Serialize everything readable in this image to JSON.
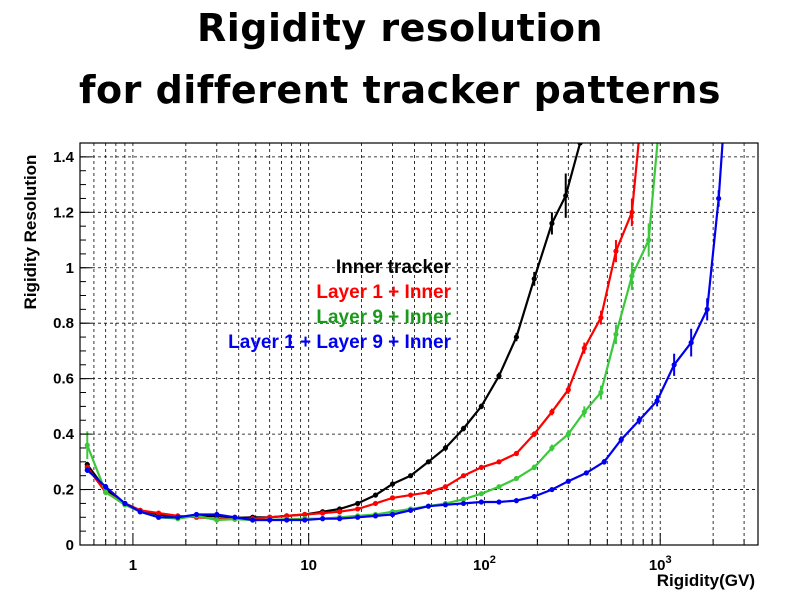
{
  "title_line1": "Rigidity resolution",
  "title_line2": "for different tracker patterns",
  "chart_data": {
    "type": "line",
    "title": "Rigidity resolution for different tracker patterns",
    "xlabel": "Rigidity(GV)",
    "ylabel": "Rigidity  Resolution",
    "xscale": "log",
    "xlim": [
      0.5,
      3600
    ],
    "ylim": [
      0,
      1.45
    ],
    "grid": true,
    "legend_position": "center",
    "yticks": [
      {
        "value": 0,
        "label": "0"
      },
      {
        "value": 0.2,
        "label": "0.2"
      },
      {
        "value": 0.4,
        "label": "0.4"
      },
      {
        "value": 0.6,
        "label": "0.6"
      },
      {
        "value": 0.8,
        "label": "0.8"
      },
      {
        "value": 1.0,
        "label": "1"
      },
      {
        "value": 1.2,
        "label": "1.2"
      },
      {
        "value": 1.4,
        "label": "1.4"
      }
    ],
    "xticks": [
      {
        "value": 1,
        "base": "1",
        "exp": ""
      },
      {
        "value": 10,
        "base": "10",
        "exp": ""
      },
      {
        "value": 100,
        "base": "10",
        "exp": "2"
      },
      {
        "value": 1000,
        "base": "10",
        "exp": "3"
      }
    ],
    "series": [
      {
        "name": "Inner tracker",
        "color": "#000000",
        "x": [
          0.55,
          0.7,
          0.9,
          1.1,
          1.4,
          1.8,
          2.3,
          3.0,
          3.8,
          4.8,
          6.0,
          7.5,
          9.5,
          12,
          15,
          19,
          24,
          30,
          38,
          48,
          60,
          76,
          96,
          121,
          152,
          192,
          242,
          290,
          350,
          420
        ],
        "y": [
          0.29,
          0.2,
          0.15,
          0.125,
          0.11,
          0.1,
          0.105,
          0.105,
          0.098,
          0.1,
          0.1,
          0.105,
          0.11,
          0.12,
          0.13,
          0.15,
          0.18,
          0.22,
          0.25,
          0.3,
          0.35,
          0.42,
          0.5,
          0.61,
          0.75,
          0.96,
          1.16,
          1.26,
          1.45,
          1.6
        ],
        "err": [
          0.01,
          0.01,
          0.008,
          0.006,
          0.005,
          0.005,
          0.005,
          0.005,
          0.005,
          0.005,
          0.005,
          0.005,
          0.005,
          0.005,
          0.005,
          0.005,
          0.006,
          0.006,
          0.007,
          0.008,
          0.01,
          0.01,
          0.01,
          0.012,
          0.015,
          0.025,
          0.04,
          0.08,
          0,
          0
        ]
      },
      {
        "name": "Layer 1 + Inner",
        "color": "#ff0000",
        "x": [
          0.55,
          0.7,
          0.9,
          1.1,
          1.4,
          1.8,
          2.3,
          3.0,
          3.8,
          4.8,
          6.0,
          7.5,
          9.5,
          12,
          15,
          19,
          24,
          30,
          38,
          48,
          60,
          76,
          96,
          121,
          152,
          192,
          242,
          300,
          370,
          460,
          560,
          690,
          780
        ],
        "y": [
          0.28,
          0.19,
          0.15,
          0.125,
          0.115,
          0.105,
          0.1,
          0.095,
          0.093,
          0.095,
          0.1,
          0.105,
          0.11,
          0.115,
          0.12,
          0.13,
          0.15,
          0.17,
          0.18,
          0.19,
          0.21,
          0.25,
          0.28,
          0.3,
          0.33,
          0.4,
          0.48,
          0.56,
          0.71,
          0.82,
          1.06,
          1.2,
          1.55
        ],
        "err": [
          0.01,
          0.01,
          0.008,
          0.006,
          0.005,
          0.005,
          0.005,
          0.005,
          0.005,
          0.005,
          0.005,
          0.005,
          0.005,
          0.005,
          0.005,
          0.005,
          0.005,
          0.005,
          0.005,
          0.006,
          0.006,
          0.007,
          0.008,
          0.008,
          0.009,
          0.01,
          0.012,
          0.015,
          0.02,
          0.025,
          0.04,
          0.05,
          0
        ]
      },
      {
        "name": "Layer 9 + Inner",
        "color": "#3cc83c",
        "x": [
          0.55,
          0.7,
          0.9,
          1.1,
          1.4,
          1.8,
          2.3,
          3.0,
          3.8,
          4.8,
          6.0,
          7.5,
          9.5,
          12,
          15,
          19,
          24,
          30,
          38,
          48,
          60,
          76,
          96,
          121,
          152,
          192,
          242,
          300,
          370,
          460,
          560,
          690,
          860,
          980
        ],
        "y": [
          0.36,
          0.19,
          0.145,
          0.12,
          0.1,
          0.095,
          0.105,
          0.09,
          0.093,
          0.09,
          0.09,
          0.093,
          0.095,
          0.095,
          0.1,
          0.105,
          0.11,
          0.12,
          0.13,
          0.14,
          0.15,
          0.165,
          0.185,
          0.21,
          0.24,
          0.28,
          0.35,
          0.4,
          0.48,
          0.55,
          0.76,
          0.97,
          1.1,
          1.5
        ],
        "err": [
          0.05,
          0.01,
          0.008,
          0.006,
          0.005,
          0.005,
          0.005,
          0.005,
          0.005,
          0.005,
          0.005,
          0.005,
          0.005,
          0.005,
          0.005,
          0.005,
          0.005,
          0.005,
          0.005,
          0.005,
          0.006,
          0.006,
          0.007,
          0.008,
          0.008,
          0.01,
          0.012,
          0.015,
          0.02,
          0.025,
          0.035,
          0.05,
          0.06,
          0
        ]
      },
      {
        "name": "Layer 1 + Layer 9 + Inner",
        "color": "#0000ee",
        "x": [
          0.55,
          0.7,
          0.9,
          1.1,
          1.4,
          1.8,
          2.3,
          3.0,
          3.8,
          4.8,
          6.0,
          7.5,
          9.5,
          12,
          15,
          19,
          24,
          30,
          38,
          48,
          60,
          76,
          96,
          121,
          152,
          192,
          242,
          300,
          380,
          480,
          600,
          760,
          960,
          1200,
          1500,
          1850,
          2150,
          2350
        ],
        "y": [
          0.27,
          0.21,
          0.15,
          0.12,
          0.1,
          0.1,
          0.11,
          0.11,
          0.1,
          0.09,
          0.09,
          0.09,
          0.09,
          0.095,
          0.095,
          0.1,
          0.105,
          0.11,
          0.125,
          0.14,
          0.145,
          0.15,
          0.155,
          0.155,
          0.16,
          0.175,
          0.2,
          0.23,
          0.26,
          0.3,
          0.38,
          0.45,
          0.52,
          0.65,
          0.73,
          0.85,
          1.25,
          1.6
        ],
        "err": [
          0.01,
          0.01,
          0.008,
          0.006,
          0.005,
          0.005,
          0.005,
          0.005,
          0.005,
          0.005,
          0.005,
          0.005,
          0.005,
          0.005,
          0.005,
          0.005,
          0.005,
          0.005,
          0.005,
          0.005,
          0.005,
          0.005,
          0.005,
          0.005,
          0.005,
          0.006,
          0.007,
          0.008,
          0.009,
          0.01,
          0.012,
          0.015,
          0.02,
          0.04,
          0.05,
          0.04,
          0.03,
          0
        ]
      }
    ]
  }
}
